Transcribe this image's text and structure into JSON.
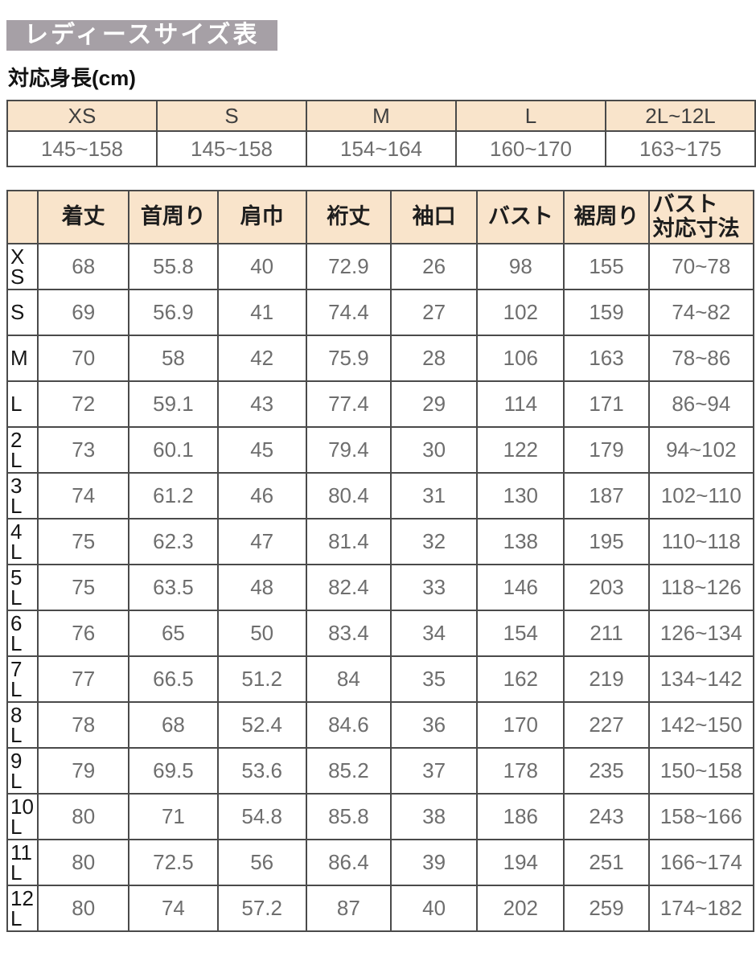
{
  "title": "レディースサイズ表",
  "subtitle": "対応身長(cm)",
  "height_table": {
    "sizes": [
      "XS",
      "S",
      "M",
      "L",
      "2L~12L"
    ],
    "ranges": [
      "145~158",
      "145~158",
      "154~164",
      "160~170",
      "163~175"
    ]
  },
  "size_table": {
    "columns": [
      "着丈",
      "首周り",
      "肩巾",
      "裄丈",
      "袖口",
      "バスト",
      "裾周り",
      "バスト\n対応寸法"
    ],
    "rows": [
      {
        "size": "XS",
        "values": [
          "68",
          "55.8",
          "40",
          "72.9",
          "26",
          "98",
          "155",
          "70~78"
        ]
      },
      {
        "size": "S",
        "values": [
          "69",
          "56.9",
          "41",
          "74.4",
          "27",
          "102",
          "159",
          "74~82"
        ]
      },
      {
        "size": "M",
        "values": [
          "70",
          "58",
          "42",
          "75.9",
          "28",
          "106",
          "163",
          "78~86"
        ]
      },
      {
        "size": "L",
        "values": [
          "72",
          "59.1",
          "43",
          "77.4",
          "29",
          "114",
          "171",
          "86~94"
        ]
      },
      {
        "size": "2L",
        "values": [
          "73",
          "60.1",
          "45",
          "79.4",
          "30",
          "122",
          "179",
          "94~102"
        ]
      },
      {
        "size": "3L",
        "values": [
          "74",
          "61.2",
          "46",
          "80.4",
          "31",
          "130",
          "187",
          "102~110"
        ]
      },
      {
        "size": "4L",
        "values": [
          "75",
          "62.3",
          "47",
          "81.4",
          "32",
          "138",
          "195",
          "110~118"
        ]
      },
      {
        "size": "5L",
        "values": [
          "75",
          "63.5",
          "48",
          "82.4",
          "33",
          "146",
          "203",
          "118~126"
        ]
      },
      {
        "size": "6L",
        "values": [
          "76",
          "65",
          "50",
          "83.4",
          "34",
          "154",
          "211",
          "126~134"
        ]
      },
      {
        "size": "7L",
        "values": [
          "77",
          "66.5",
          "51.2",
          "84",
          "35",
          "162",
          "219",
          "134~142"
        ]
      },
      {
        "size": "8L",
        "values": [
          "78",
          "68",
          "52.4",
          "84.6",
          "36",
          "170",
          "227",
          "142~150"
        ]
      },
      {
        "size": "9L",
        "values": [
          "79",
          "69.5",
          "53.6",
          "85.2",
          "37",
          "178",
          "235",
          "150~158"
        ]
      },
      {
        "size": "10L",
        "values": [
          "80",
          "71",
          "54.8",
          "85.8",
          "38",
          "186",
          "243",
          "158~166"
        ]
      },
      {
        "size": "11L",
        "values": [
          "80",
          "72.5",
          "56",
          "86.4",
          "39",
          "194",
          "251",
          "166~174"
        ]
      },
      {
        "size": "12L",
        "values": [
          "80",
          "74",
          "57.2",
          "87",
          "40",
          "202",
          "259",
          "174~182"
        ]
      }
    ]
  },
  "colors": {
    "title_bg": "#a6a0a6",
    "title_text": "#ffffff",
    "header_bg": "#f9e4cb",
    "border": "#4a4a4a",
    "value_text": "#6e6e6e",
    "label_text": "#151515"
  }
}
